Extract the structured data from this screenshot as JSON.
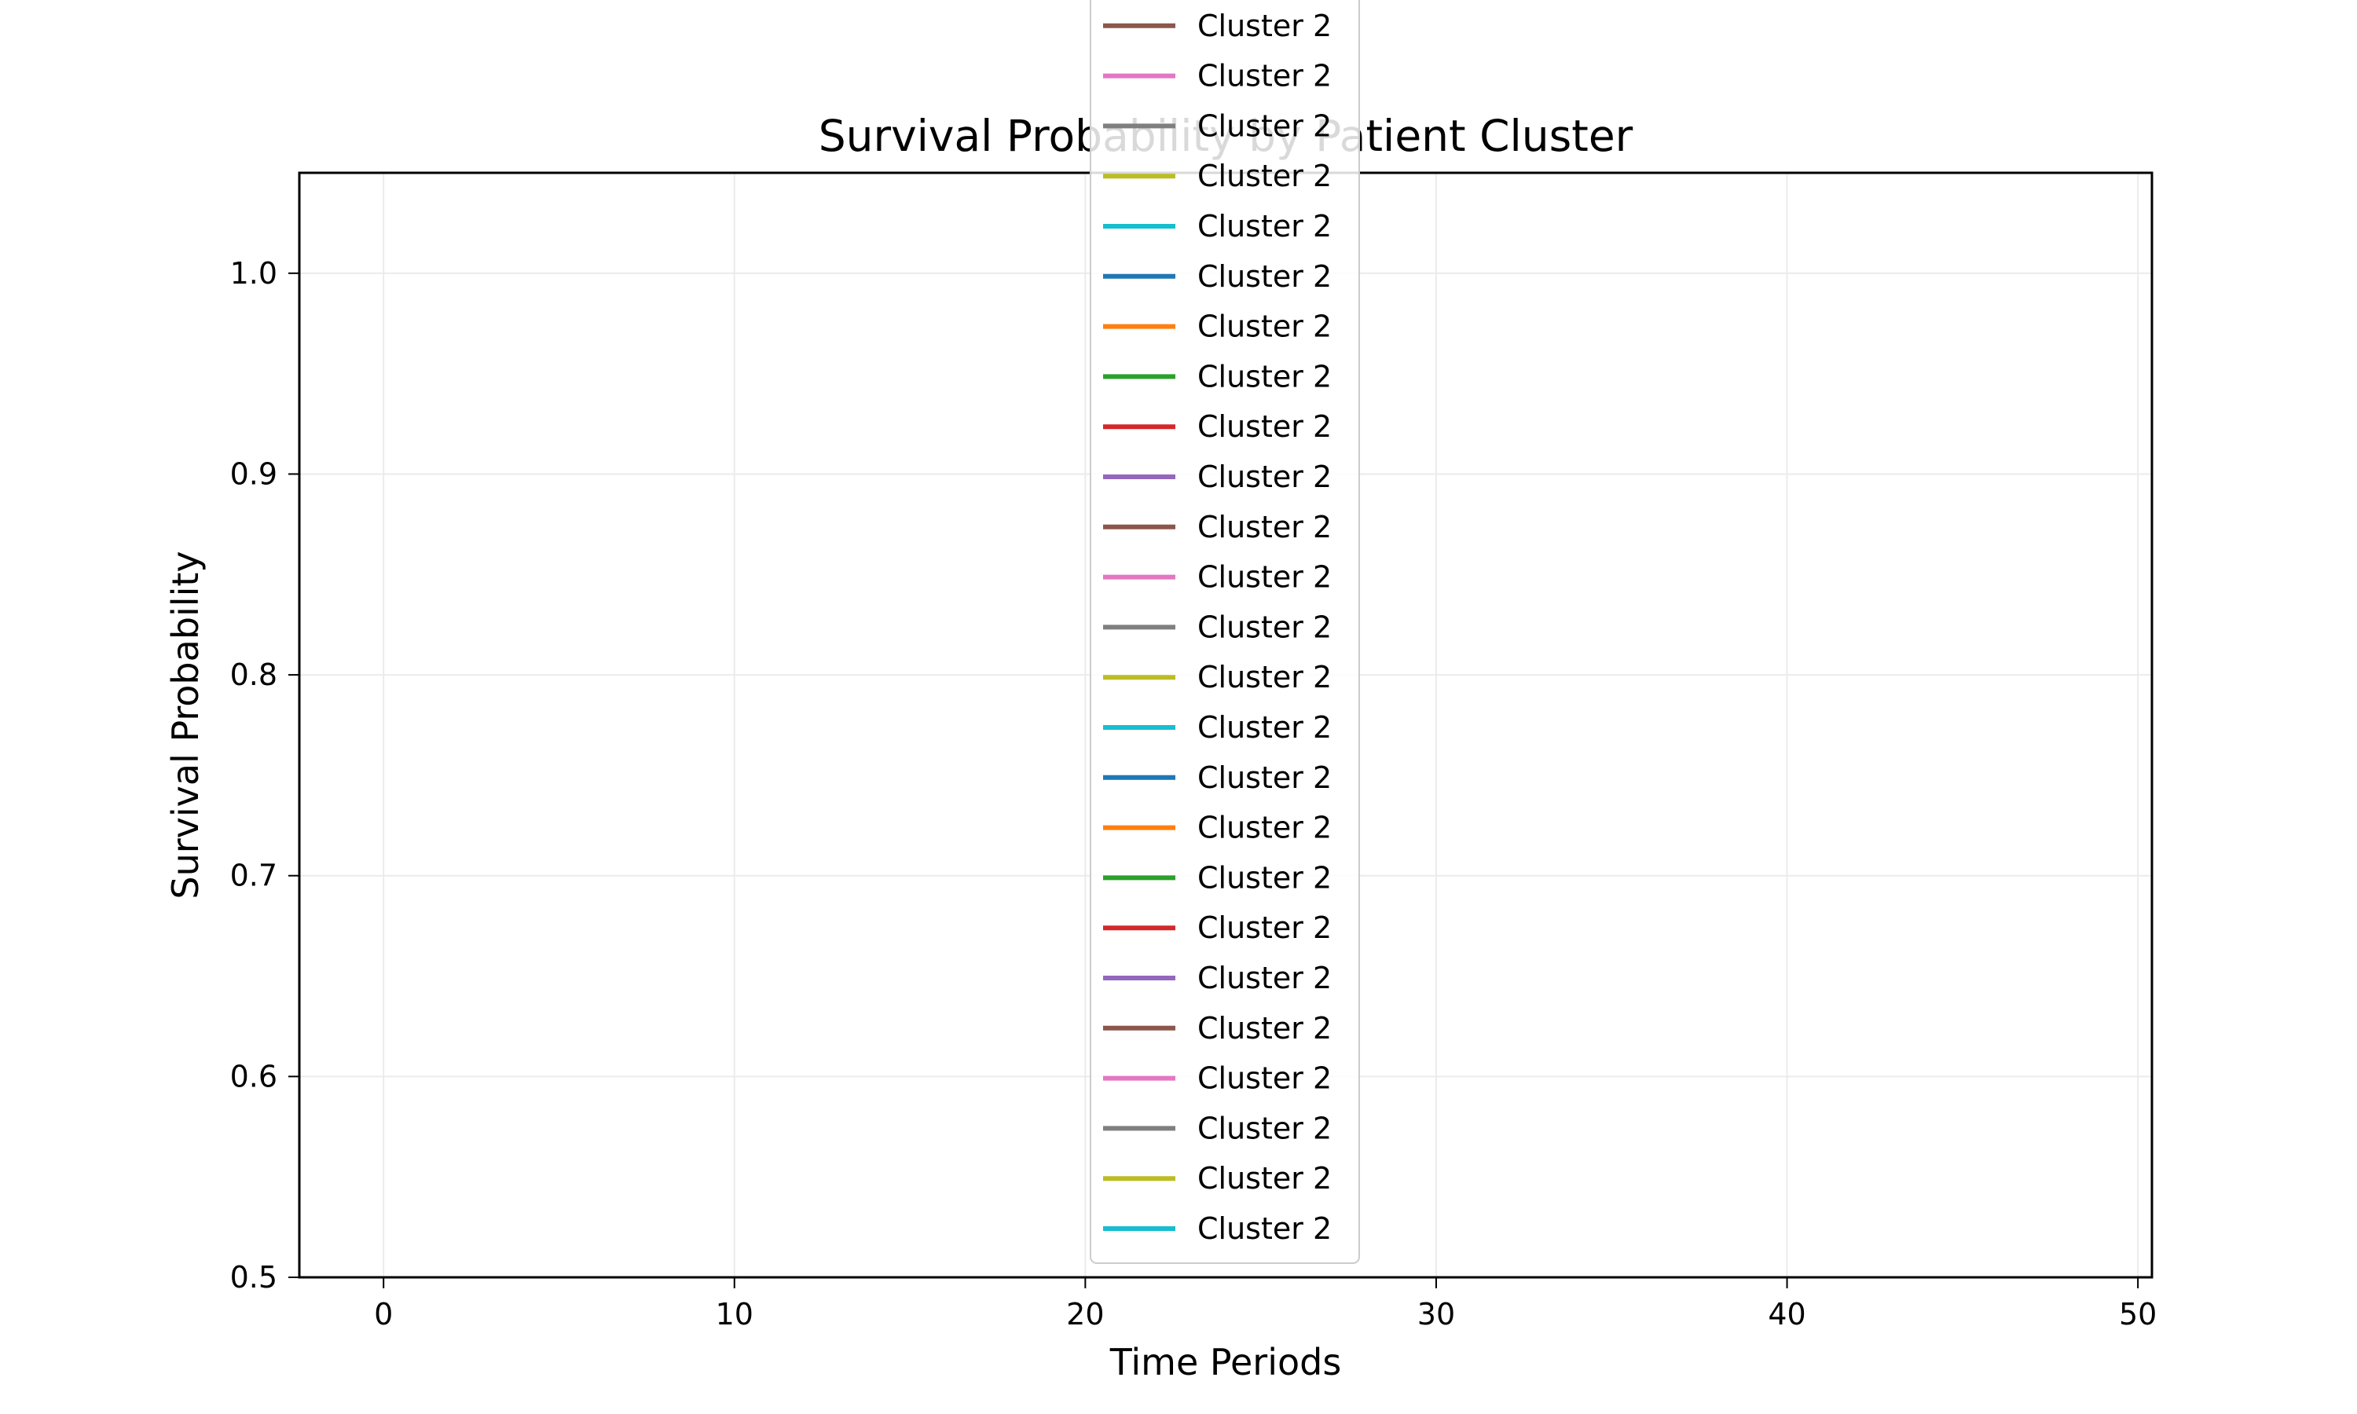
{
  "chart_data": {
    "type": "line",
    "title": "Survival Probability by Patient Cluster",
    "xlabel": "Time Periods",
    "ylabel": "Survival Probability",
    "xlim": [
      -2.4,
      50.4
    ],
    "ylim": [
      0.5,
      1.05
    ],
    "xticks": [
      0,
      10,
      20,
      30,
      40,
      50
    ],
    "yticks": [
      0.5,
      0.6,
      0.7,
      0.8,
      0.9,
      1.0
    ],
    "ytick_labels": [
      "0.5",
      "0.6",
      "0.7",
      "0.8",
      "0.9",
      "1.0"
    ],
    "grid": true,
    "legend_position": "upper center, overflowing above the plot area",
    "series": [
      {
        "name": "Cluster 2",
        "color": "#8c564b",
        "x": [],
        "y": []
      },
      {
        "name": "Cluster 2",
        "color": "#e377c2",
        "x": [],
        "y": []
      },
      {
        "name": "Cluster 2",
        "color": "#7f7f7f",
        "x": [],
        "y": []
      },
      {
        "name": "Cluster 2",
        "color": "#bcbd22",
        "x": [],
        "y": []
      },
      {
        "name": "Cluster 2",
        "color": "#17becf",
        "x": [],
        "y": []
      },
      {
        "name": "Cluster 2",
        "color": "#1f77b4",
        "x": [],
        "y": []
      },
      {
        "name": "Cluster 2",
        "color": "#ff7f0e",
        "x": [],
        "y": []
      },
      {
        "name": "Cluster 2",
        "color": "#2ca02c",
        "x": [],
        "y": []
      },
      {
        "name": "Cluster 2",
        "color": "#d62728",
        "x": [],
        "y": []
      },
      {
        "name": "Cluster 2",
        "color": "#9467bd",
        "x": [],
        "y": []
      },
      {
        "name": "Cluster 2",
        "color": "#8c564b",
        "x": [],
        "y": []
      },
      {
        "name": "Cluster 2",
        "color": "#e377c2",
        "x": [],
        "y": []
      },
      {
        "name": "Cluster 2",
        "color": "#7f7f7f",
        "x": [],
        "y": []
      },
      {
        "name": "Cluster 2",
        "color": "#bcbd22",
        "x": [],
        "y": []
      },
      {
        "name": "Cluster 2",
        "color": "#17becf",
        "x": [],
        "y": []
      },
      {
        "name": "Cluster 2",
        "color": "#1f77b4",
        "x": [],
        "y": []
      },
      {
        "name": "Cluster 2",
        "color": "#ff7f0e",
        "x": [],
        "y": []
      },
      {
        "name": "Cluster 2",
        "color": "#2ca02c",
        "x": [],
        "y": []
      },
      {
        "name": "Cluster 2",
        "color": "#d62728",
        "x": [],
        "y": []
      },
      {
        "name": "Cluster 2",
        "color": "#9467bd",
        "x": [],
        "y": []
      },
      {
        "name": "Cluster 2",
        "color": "#8c564b",
        "x": [],
        "y": []
      },
      {
        "name": "Cluster 2",
        "color": "#e377c2",
        "x": [],
        "y": []
      },
      {
        "name": "Cluster 2",
        "color": "#7f7f7f",
        "x": [],
        "y": []
      },
      {
        "name": "Cluster 2",
        "color": "#bcbd22",
        "x": [],
        "y": []
      },
      {
        "name": "Cluster 2",
        "color": "#17becf",
        "x": [],
        "y": []
      }
    ]
  }
}
